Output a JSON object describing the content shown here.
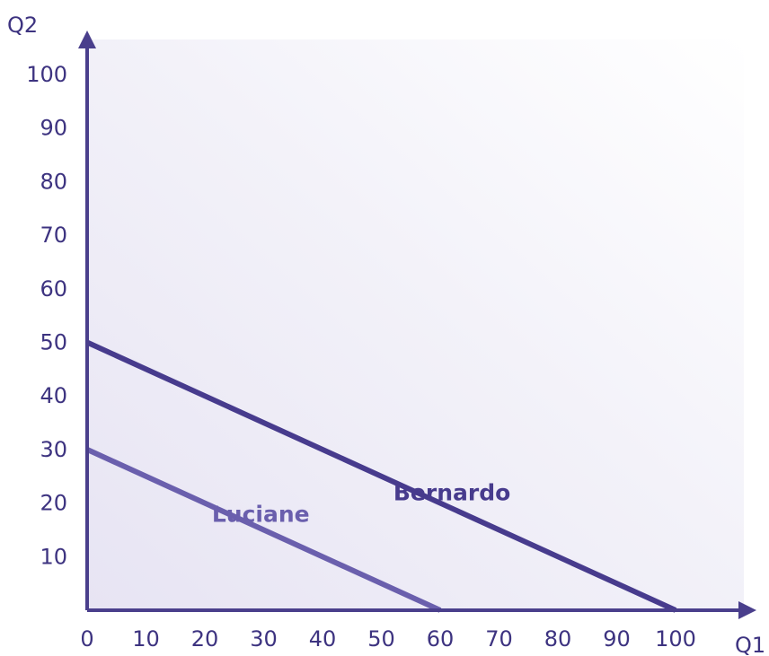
{
  "chart_data": {
    "type": "line",
    "title": "",
    "xlabel": "Q1",
    "ylabel": "Q2",
    "xlim": [
      0,
      105
    ],
    "ylim": [
      0,
      105
    ],
    "x_ticks": [
      0,
      10,
      20,
      30,
      40,
      50,
      60,
      70,
      80,
      90,
      100
    ],
    "y_ticks": [
      10,
      20,
      30,
      40,
      50,
      60,
      70,
      80,
      90,
      100
    ],
    "grid": false,
    "legend": "none",
    "colors": {
      "axis": "#4a3f8c",
      "tick_text": "#3d3380",
      "background_tint": "#e9e6f4"
    },
    "series": [
      {
        "name": "Bernardo",
        "points": [
          [
            0,
            50
          ],
          [
            100,
            0
          ]
        ],
        "color": "#473b8d",
        "label_anchor": [
          62,
          20.5
        ]
      },
      {
        "name": "Luciane",
        "points": [
          [
            0,
            30
          ],
          [
            60,
            0
          ]
        ],
        "color": "#6a5fad",
        "label_anchor": [
          29.5,
          16.5
        ]
      }
    ]
  }
}
